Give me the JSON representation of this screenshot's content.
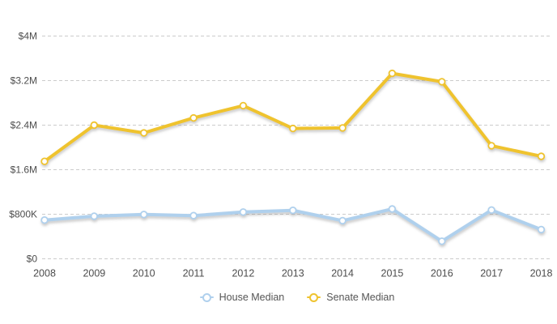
{
  "chart": {
    "background_color": "#ffffff",
    "grid_color": "#cccccc",
    "tick_label_color": "#4d4d4d",
    "legend_text_color": "#555555"
  },
  "chart_data": {
    "type": "line",
    "x": [
      2008,
      2009,
      2010,
      2011,
      2012,
      2013,
      2014,
      2015,
      2016,
      2017,
      2018
    ],
    "series": [
      {
        "name": "House Median",
        "color": "#AFD0ED",
        "values": [
          695000,
          765000,
          795000,
          775000,
          840000,
          870000,
          685000,
          895000,
          315000,
          875000,
          525000
        ]
      },
      {
        "name": "Senate Median",
        "color": "#EFC32F",
        "values": [
          1750000,
          2400000,
          2260000,
          2530000,
          2750000,
          2340000,
          2350000,
          3330000,
          3180000,
          2030000,
          1840000
        ]
      }
    ],
    "title": "",
    "xlabel": "",
    "ylabel": "",
    "ylim": [
      0,
      4000000
    ],
    "yticks": {
      "values": [
        0,
        800000,
        1600000,
        2400000,
        3200000,
        4000000
      ],
      "labels": [
        "$0",
        "$800K",
        "$1.6M",
        "$2.4M",
        "$3.2M",
        "$4M"
      ]
    },
    "grid": "horizontal-dashed",
    "legend_position": "bottom-center",
    "marker": "open-circle"
  }
}
